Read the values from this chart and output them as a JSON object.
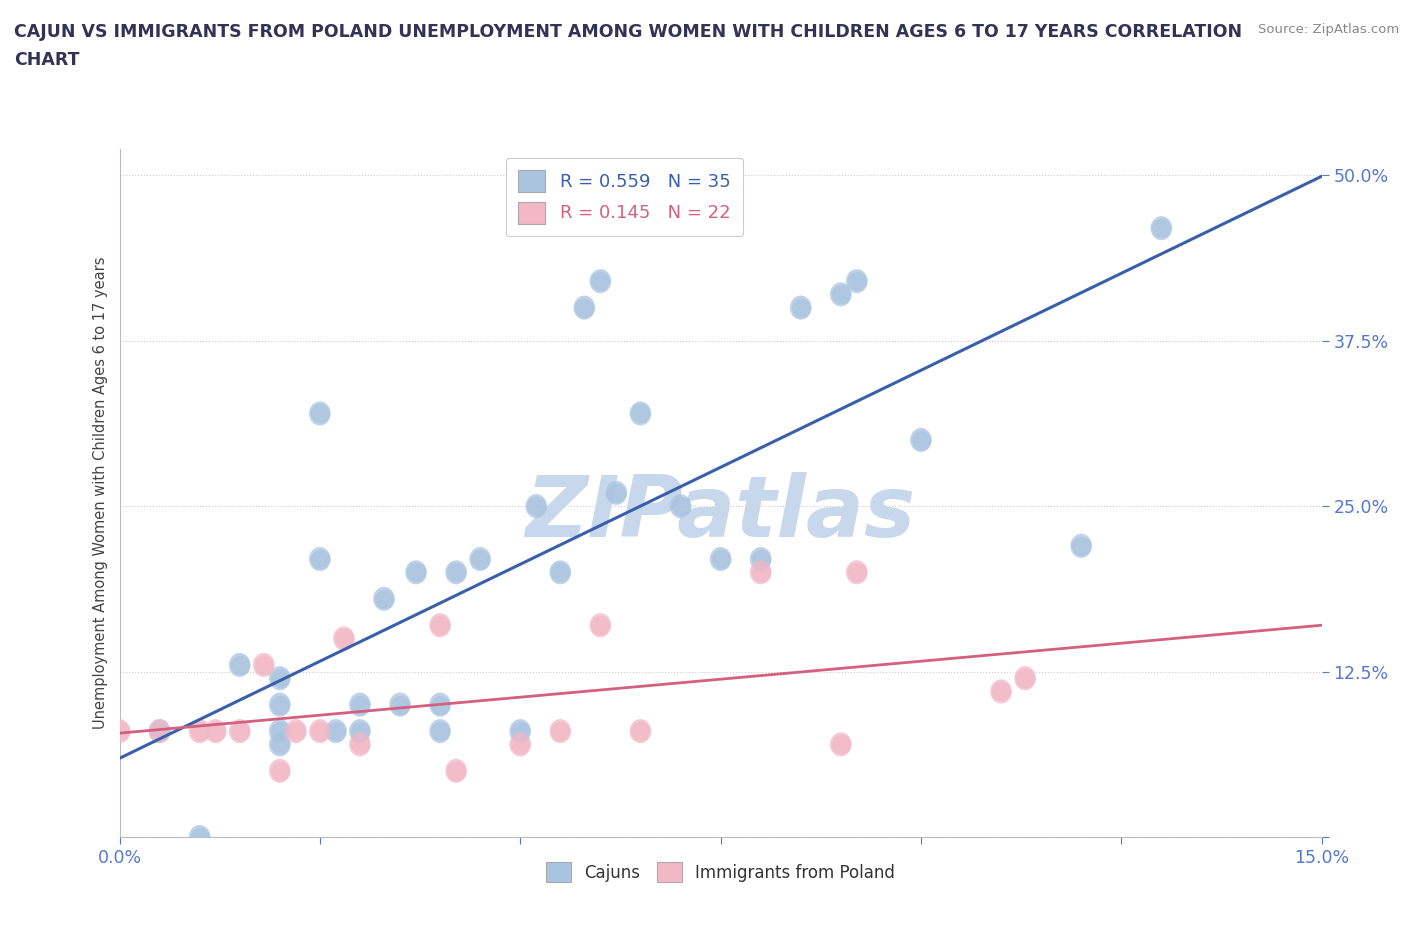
{
  "title_line1": "CAJUN VS IMMIGRANTS FROM POLAND UNEMPLOYMENT AMONG WOMEN WITH CHILDREN AGES 6 TO 17 YEARS CORRELATION",
  "title_line2": "CHART",
  "source_text": "Source: ZipAtlas.com",
  "ylabel": "Unemployment Among Women with Children Ages 6 to 17 years",
  "xlim": [
    0.0,
    0.15
  ],
  "ylim": [
    -0.03,
    0.52
  ],
  "xticks": [
    0.0,
    0.025,
    0.05,
    0.075,
    0.1,
    0.125,
    0.15
  ],
  "xticklabels": [
    "0.0%",
    "",
    "",
    "",
    "",
    "",
    "15.0%"
  ],
  "yticks": [
    0.0,
    0.125,
    0.25,
    0.375,
    0.5
  ],
  "yticklabels": [
    "",
    "12.5%",
    "25.0%",
    "37.5%",
    "50.0%"
  ],
  "cajun_color": "#aac4e0",
  "poland_color": "#f2b8c6",
  "cajun_line_color": "#3a5faa",
  "poland_line_color": "#d46080",
  "tick_color": "#5577cc",
  "cajun_R": 0.559,
  "cajun_N": 35,
  "poland_R": 0.145,
  "poland_N": 22,
  "watermark": "ZIPatlas",
  "watermark_color": "#c8d8ec",
  "cajun_x": [
    0.005,
    0.01,
    0.015,
    0.02,
    0.02,
    0.02,
    0.02,
    0.025,
    0.025,
    0.027,
    0.03,
    0.03,
    0.033,
    0.035,
    0.037,
    0.04,
    0.04,
    0.042,
    0.045,
    0.05,
    0.052,
    0.055,
    0.058,
    0.06,
    0.062,
    0.065,
    0.07,
    0.075,
    0.08,
    0.085,
    0.09,
    0.092,
    0.1,
    0.12,
    0.13
  ],
  "cajun_y": [
    0.08,
    0.0,
    0.13,
    0.12,
    0.1,
    0.08,
    0.07,
    0.21,
    0.32,
    0.08,
    0.08,
    0.1,
    0.18,
    0.1,
    0.2,
    0.08,
    0.1,
    0.2,
    0.21,
    0.08,
    0.25,
    0.2,
    0.4,
    0.42,
    0.26,
    0.32,
    0.25,
    0.21,
    0.21,
    0.4,
    0.41,
    0.42,
    0.3,
    0.22,
    0.46
  ],
  "poland_x": [
    0.0,
    0.005,
    0.01,
    0.012,
    0.015,
    0.018,
    0.02,
    0.022,
    0.025,
    0.028,
    0.03,
    0.04,
    0.042,
    0.05,
    0.055,
    0.06,
    0.065,
    0.08,
    0.09,
    0.092,
    0.11,
    0.113
  ],
  "poland_y": [
    0.08,
    0.08,
    0.08,
    0.08,
    0.08,
    0.13,
    0.05,
    0.08,
    0.08,
    0.15,
    0.07,
    0.16,
    0.05,
    0.07,
    0.08,
    0.16,
    0.08,
    0.2,
    0.07,
    0.2,
    0.11,
    0.12
  ],
  "background_color": "#ffffff",
  "grid_color": "#cccccc"
}
